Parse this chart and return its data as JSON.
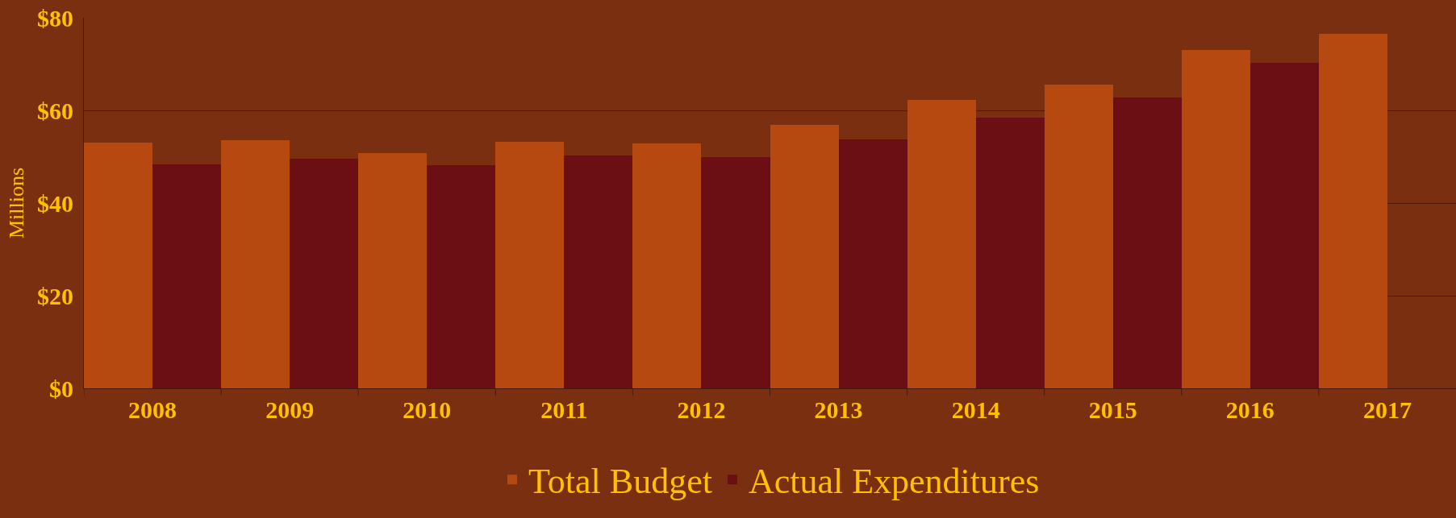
{
  "chart_data": {
    "type": "bar",
    "ylabel": "Millions",
    "categories": [
      "2008",
      "2009",
      "2010",
      "2011",
      "2012",
      "2013",
      "2014",
      "2015",
      "2016",
      "2017"
    ],
    "series": [
      {
        "name": "Total Budget",
        "color": "#b5490f",
        "values": [
          53,
          53.6,
          50.8,
          53.2,
          52.8,
          56.8,
          62.2,
          65.6,
          73,
          76.6
        ]
      },
      {
        "name": "Actual Expenditures",
        "color": "#6b0f14",
        "values": [
          48.4,
          49.6,
          48.2,
          50.2,
          50,
          53.8,
          58.4,
          62.8,
          70.2,
          null
        ]
      }
    ],
    "ylim": [
      0,
      80
    ],
    "yticks": [
      {
        "value": 0,
        "label": "$0"
      },
      {
        "value": 20,
        "label": "$20"
      },
      {
        "value": 40,
        "label": "$40"
      },
      {
        "value": 60,
        "label": "$60"
      },
      {
        "value": 80,
        "label": "$80"
      }
    ],
    "grid": "y",
    "legend": "bottom"
  }
}
